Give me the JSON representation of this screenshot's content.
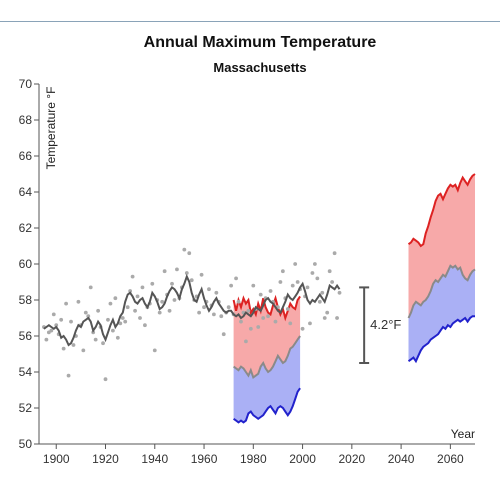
{
  "chart_data": {
    "type": "line",
    "title": "Annual Maximum Temperature",
    "subtitle": "Massachusetts",
    "ylabel": "Temperature °F",
    "xlabel": "Year",
    "xlim": [
      1893,
      2070
    ],
    "ylim": [
      50,
      70
    ],
    "xticks": [
      1900,
      1920,
      1940,
      1960,
      1980,
      2000,
      2020,
      2040,
      2060
    ],
    "yticks": [
      50,
      52,
      54,
      56,
      58,
      60,
      62,
      64,
      66,
      68,
      70
    ],
    "colors": {
      "observed_line": "#555555",
      "observed_points": "#aaaaaa",
      "high_line": "#dd2222",
      "high_fill": "#f7a9a9",
      "low_line": "#2222cc",
      "low_fill": "#aab0f5",
      "median_line": "#8a8a8a",
      "bracket": "#555555"
    },
    "observed": {
      "years": [
        1895,
        1896,
        1897,
        1898,
        1899,
        1900,
        1901,
        1902,
        1903,
        1904,
        1905,
        1906,
        1907,
        1908,
        1909,
        1910,
        1911,
        1912,
        1913,
        1914,
        1915,
        1916,
        1917,
        1918,
        1919,
        1920,
        1921,
        1922,
        1923,
        1924,
        1925,
        1926,
        1927,
        1928,
        1929,
        1930,
        1931,
        1932,
        1933,
        1934,
        1935,
        1936,
        1937,
        1938,
        1939,
        1940,
        1941,
        1942,
        1943,
        1944,
        1945,
        1946,
        1947,
        1948,
        1949,
        1950,
        1951,
        1952,
        1953,
        1954,
        1955,
        1956,
        1957,
        1958,
        1959,
        1960,
        1961,
        1962,
        1963,
        1964,
        1965,
        1966,
        1967,
        1968,
        1969,
        1970,
        1971,
        1972,
        1973,
        1974,
        1975,
        1976,
        1977,
        1978,
        1979,
        1980,
        1981,
        1982,
        1983,
        1984,
        1985,
        1986,
        1987,
        1988,
        1989,
        1990,
        1991,
        1992,
        1993,
        1994,
        1995,
        1996,
        1997,
        1998,
        1999,
        2000,
        2001,
        2002,
        2003,
        2004,
        2005,
        2006,
        2007,
        2008,
        2009,
        2010,
        2011,
        2012,
        2013,
        2014,
        2015
      ],
      "smoothed": [
        56.4,
        56.5,
        56.6,
        56.5,
        56.4,
        56.5,
        56.3,
        55.9,
        56.0,
        55.8,
        55.5,
        55.6,
        55.9,
        56.3,
        56.6,
        56.5,
        56.8,
        56.9,
        57.0,
        56.8,
        56.3,
        56.5,
        56.8,
        56.6,
        56.1,
        55.8,
        56.2,
        56.6,
        56.9,
        56.5,
        56.7,
        57.1,
        57.3,
        57.9,
        58.3,
        58.4,
        58.2,
        57.9,
        57.8,
        58.0,
        58.1,
        57.8,
        57.6,
        57.9,
        58.4,
        58.2,
        57.9,
        57.5,
        57.6,
        57.8,
        58.2,
        58.5,
        58.7,
        58.6,
        58.4,
        58.1,
        58.6,
        58.9,
        59.3,
        59.0,
        58.4,
        58.0,
        57.9,
        58.3,
        58.6,
        58.1,
        57.7,
        57.4,
        57.6,
        57.9,
        58.1,
        57.8,
        57.6,
        57.4,
        57.3,
        57.4,
        57.4,
        57.2,
        57.1,
        57.2,
        57.0,
        57.1,
        57.3,
        57.2,
        57.1,
        57.3,
        57.6,
        57.5,
        57.4,
        57.7,
        58.0,
        58.1,
        57.9,
        57.8,
        57.6,
        57.4,
        57.3,
        57.6,
        57.9,
        58.3,
        58.1,
        58.0,
        58.2,
        58.4,
        58.7,
        58.9,
        58.5,
        58.0,
        57.8,
        58.0,
        57.9,
        58.1,
        58.3,
        58.1,
        57.9,
        58.3,
        58.8,
        58.7,
        58.6,
        58.8,
        58.6
      ],
      "annual": [
        56.5,
        55.8,
        56.2,
        56.3,
        57.2,
        56.6,
        56.1,
        56.9,
        55.3,
        57.8,
        53.8,
        56.8,
        55.5,
        56.0,
        57.9,
        56.6,
        55.2,
        57.3,
        57.1,
        58.7,
        56.2,
        55.8,
        57.4,
        56.5,
        55.6,
        53.6,
        56.9,
        57.8,
        56.3,
        58.1,
        55.9,
        56.7,
        57.0,
        56.8,
        57.6,
        58.5,
        59.3,
        57.4,
        58.2,
        57.0,
        58.7,
        56.6,
        57.6,
        57.8,
        58.9,
        55.2,
        58.0,
        57.3,
        57.9,
        59.6,
        58.3,
        57.4,
        58.9,
        58.0,
        59.7,
        58.1,
        58.7,
        60.8,
        59.5,
        60.6,
        59.1,
        58.0,
        58.2,
        57.3,
        59.4,
        57.6,
        57.9,
        58.6,
        57.7,
        57.2,
        58.4,
        57.9,
        57.1,
        56.1,
        57.3,
        57.6,
        58.8,
        57.2,
        59.2,
        57.9,
        56.8,
        57.3,
        55.7,
        57.4,
        56.4,
        58.8,
        57.5,
        56.5,
        58.3,
        57.0,
        58.1,
        57.1,
        58.5,
        57.9,
        56.8,
        57.6,
        59.0,
        59.6,
        58.1,
        57.5,
        56.7,
        58.8,
        60.0,
        59.0,
        58.6,
        56.4,
        58.2,
        58.7,
        56.7,
        59.5,
        60.0,
        59.2,
        57.9,
        58.4,
        57.0,
        57.3,
        59.6,
        59.0,
        60.6,
        57.0,
        58.4
      ]
    },
    "hindcast": {
      "years": [
        1972,
        1973,
        1974,
        1975,
        1976,
        1977,
        1978,
        1979,
        1980,
        1981,
        1982,
        1983,
        1984,
        1985,
        1986,
        1987,
        1988,
        1989,
        1990,
        1991,
        1992,
        1993,
        1994,
        1995,
        1996,
        1997,
        1998,
        1999
      ],
      "high": [
        58.0,
        57.4,
        58.0,
        57.6,
        58.1,
        57.8,
        58.0,
        57.3,
        57.5,
        57.2,
        57.8,
        57.4,
        58.1,
        57.6,
        57.3,
        57.2,
        57.7,
        58.1,
        57.6,
        57.2,
        57.5,
        57.0,
        57.4,
        57.8,
        57.6,
        57.5,
        58.0,
        58.2
      ],
      "median": [
        54.3,
        54.2,
        54.1,
        54.3,
        54.2,
        54.0,
        53.8,
        54.1,
        53.7,
        53.8,
        53.9,
        54.3,
        54.5,
        54.2,
        54.0,
        54.1,
        54.3,
        54.6,
        54.9,
        54.7,
        54.5,
        54.6,
        54.9,
        55.3,
        55.4,
        55.6,
        55.8,
        56.0
      ],
      "low": [
        51.4,
        51.3,
        51.2,
        51.3,
        51.2,
        51.3,
        51.7,
        51.8,
        51.6,
        51.5,
        51.4,
        51.5,
        51.6,
        51.8,
        52.0,
        52.1,
        51.9,
        51.7,
        52.0,
        52.1,
        52.0,
        51.8,
        51.6,
        51.8,
        52.1,
        52.5,
        52.9,
        53.1
      ]
    },
    "projection": {
      "years": [
        2043,
        2044,
        2045,
        2046,
        2047,
        2048,
        2049,
        2050,
        2051,
        2052,
        2053,
        2054,
        2055,
        2056,
        2057,
        2058,
        2059,
        2060,
        2061,
        2062,
        2063,
        2064,
        2065,
        2066,
        2067,
        2068,
        2069,
        2070
      ],
      "high": [
        61.1,
        61.2,
        61.4,
        61.3,
        61.2,
        61.0,
        61.1,
        61.7,
        62.1,
        62.6,
        63.0,
        63.5,
        63.8,
        63.9,
        63.6,
        63.9,
        64.2,
        64.4,
        64.3,
        64.4,
        64.1,
        64.5,
        64.8,
        64.6,
        64.4,
        64.7,
        64.9,
        65.0
      ],
      "median": [
        57.0,
        57.3,
        57.7,
        57.9,
        57.8,
        57.7,
        57.9,
        58.0,
        58.2,
        58.5,
        58.9,
        59.1,
        59.0,
        59.2,
        59.4,
        59.3,
        59.6,
        59.9,
        59.8,
        59.9,
        59.7,
        59.8,
        59.4,
        59.2,
        59.1,
        59.4,
        59.6,
        59.7
      ],
      "low": [
        54.6,
        54.7,
        54.8,
        54.6,
        54.9,
        55.2,
        55.4,
        55.5,
        55.6,
        55.8,
        55.9,
        56.0,
        56.1,
        56.3,
        56.5,
        56.4,
        56.6,
        56.5,
        56.7,
        56.8,
        56.9,
        56.8,
        56.9,
        57.0,
        56.8,
        57.0,
        57.1,
        57.1
      ]
    },
    "bracket": {
      "label": "4.2°F",
      "from": 54.5,
      "to": 58.7,
      "x": 2025
    }
  }
}
